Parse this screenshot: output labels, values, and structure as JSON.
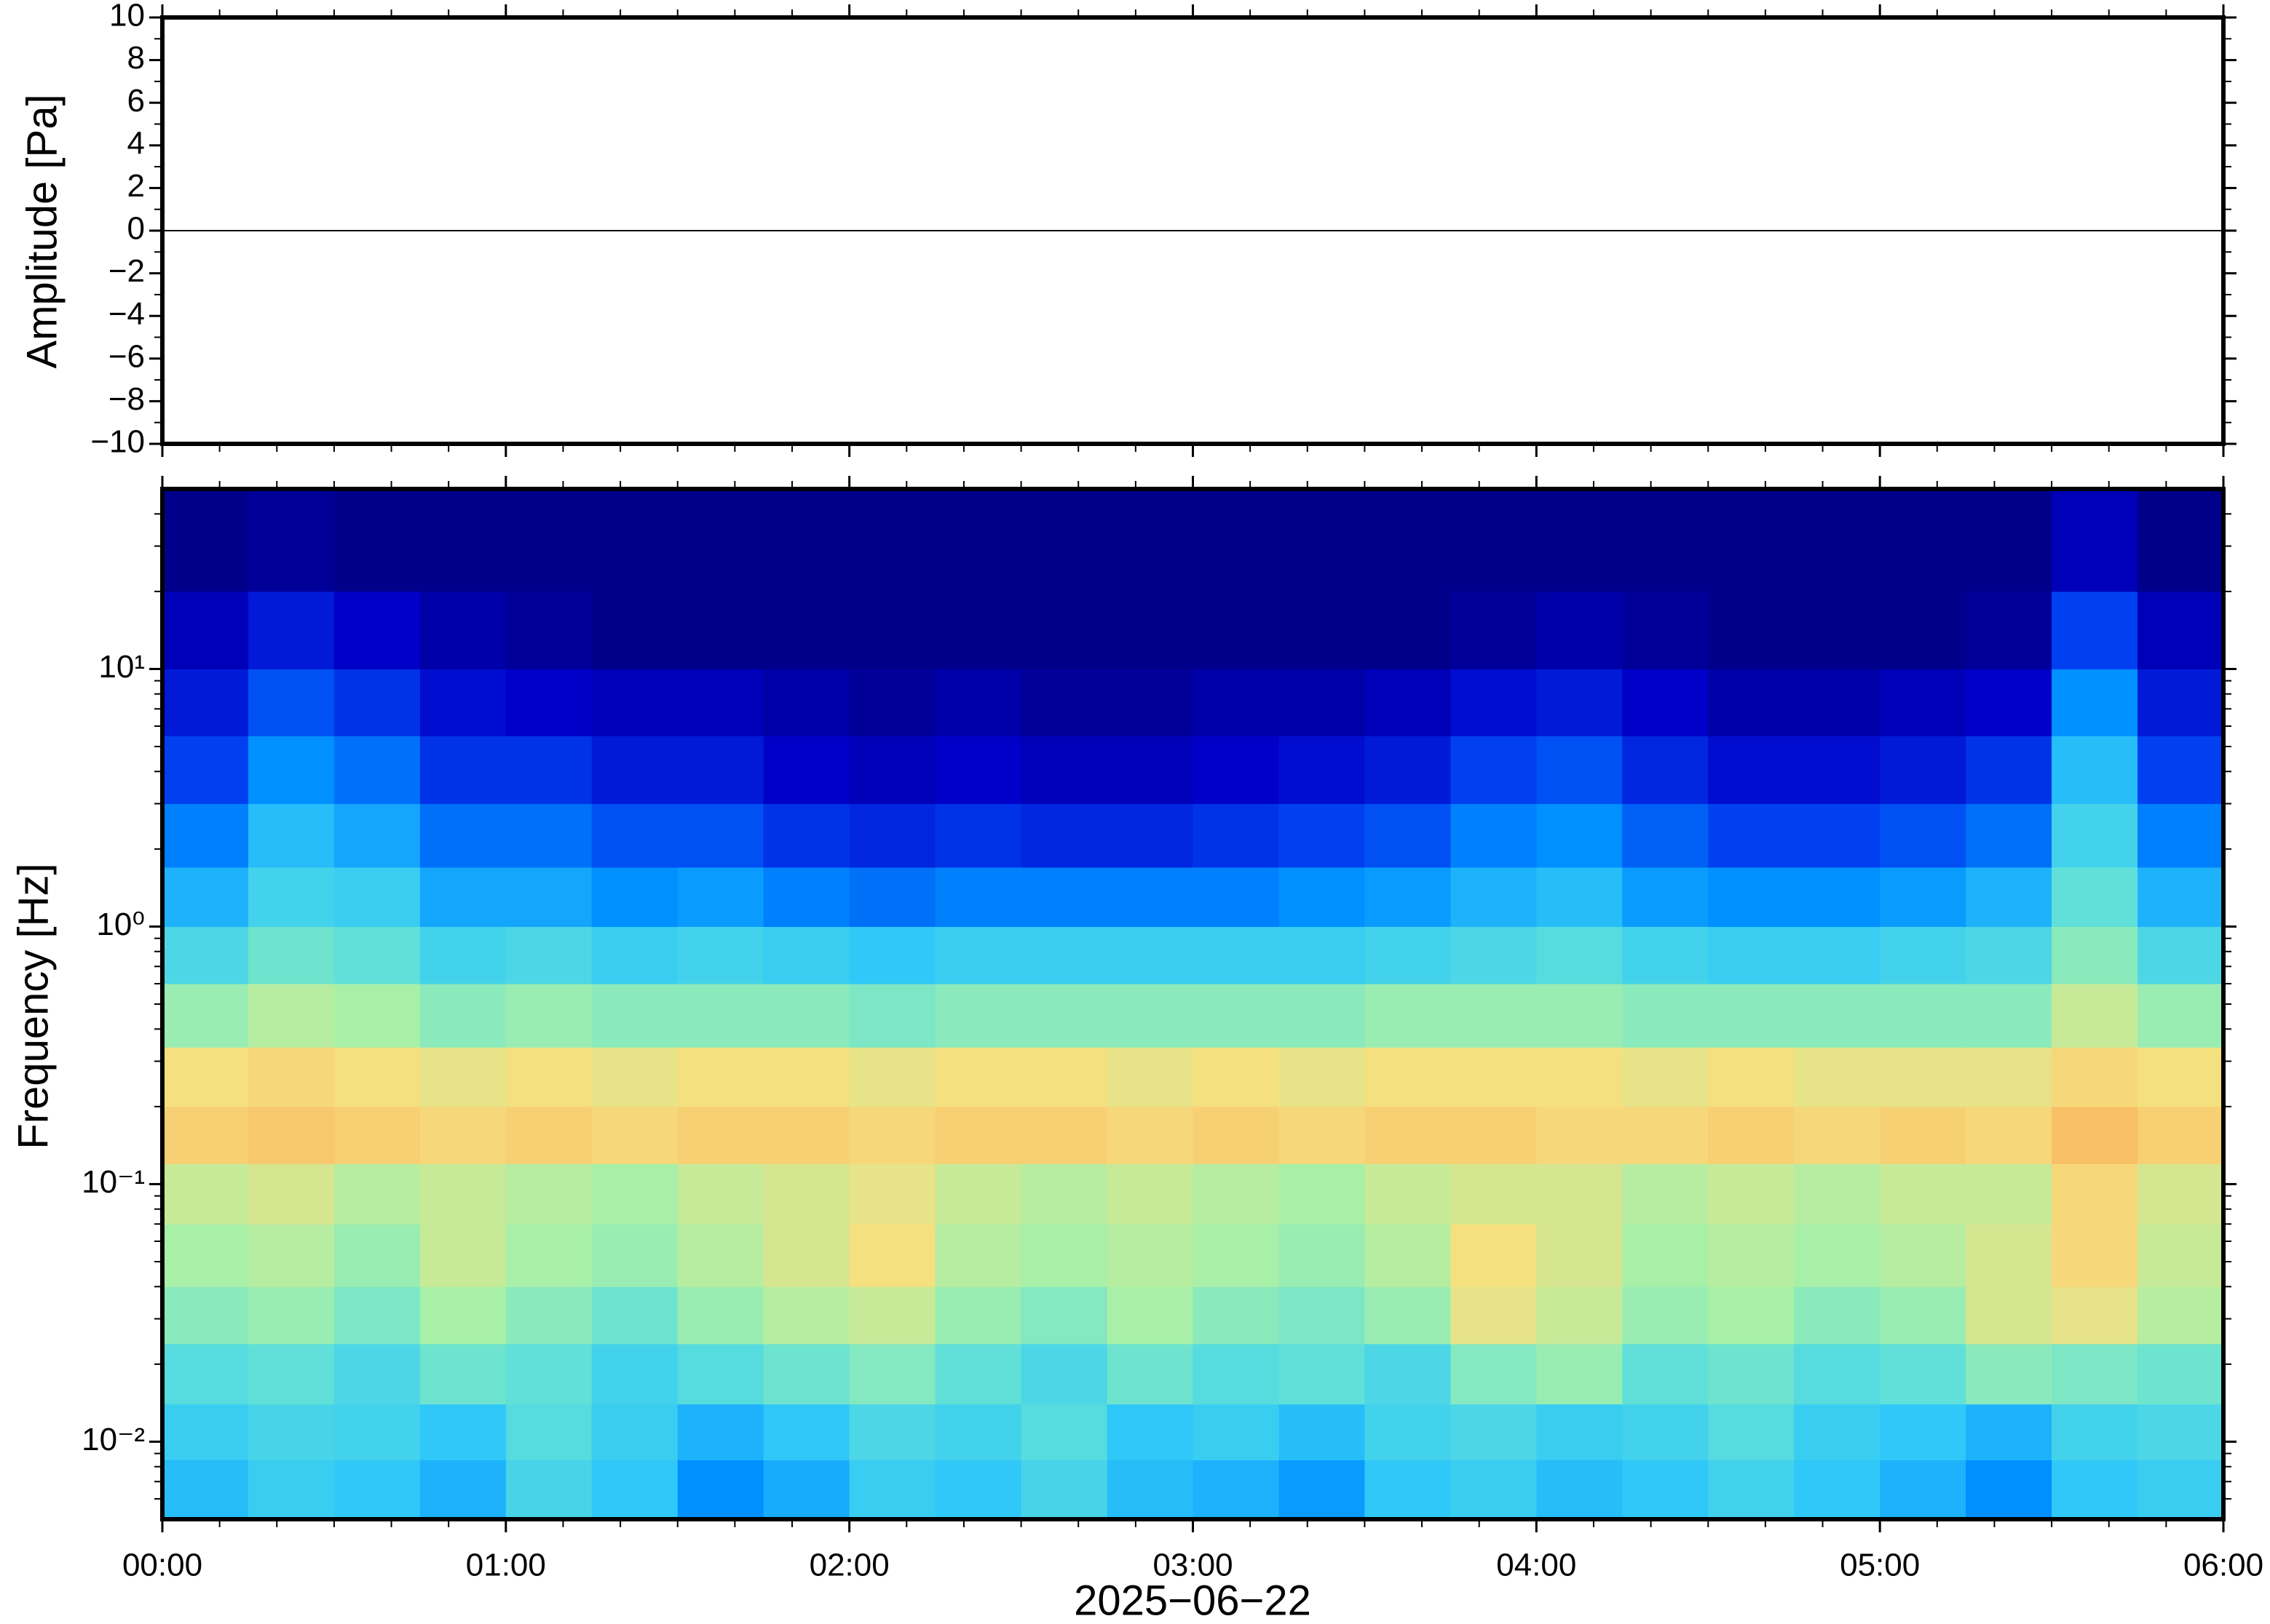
{
  "chart_data": [
    {
      "type": "line",
      "ylabel": "Amplitude [Pa]",
      "color": "#000000",
      "xlim": [
        0,
        6
      ],
      "xticks": [
        0,
        1,
        2,
        3,
        4,
        5,
        6
      ],
      "ylim": [
        -10,
        10
      ],
      "yticks": [
        {
          "value": -10,
          "label": "−10"
        },
        {
          "value": -8,
          "label": "−8"
        },
        {
          "value": -6,
          "label": "−6"
        },
        {
          "value": -4,
          "label": "−4"
        },
        {
          "value": -2,
          "label": "−2"
        },
        0,
        2,
        4,
        6,
        8,
        10
      ],
      "x": [
        0,
        0.25,
        0.5,
        0.75,
        1,
        1.25,
        1.5,
        1.75,
        2,
        2.25,
        2.5,
        2.75,
        3,
        3.25,
        3.5,
        3.75,
        4,
        4.25,
        4.5,
        4.75,
        5,
        5.25,
        5.5,
        5.75,
        6
      ],
      "values": [
        0,
        0,
        0,
        0,
        0,
        0,
        0,
        0,
        0,
        0,
        0,
        0,
        0,
        0,
        0,
        0,
        0,
        0,
        0,
        0,
        0,
        0,
        0,
        0,
        0
      ]
    },
    {
      "type": "heatmap",
      "ylabel": "Frequency [Hz]",
      "xlabel": "2025−06−22",
      "log_y": true,
      "xlim": [
        0,
        6
      ],
      "xticks": [
        {
          "value": 0,
          "label": "00:00"
        },
        {
          "value": 1,
          "label": "01:00"
        },
        {
          "value": 2,
          "label": "02:00"
        },
        {
          "value": 3,
          "label": "03:00"
        },
        {
          "value": 4,
          "label": "04:00"
        },
        {
          "value": 5,
          "label": "05:00"
        },
        {
          "value": 6,
          "label": "06:00"
        }
      ],
      "ylim": [
        0.005,
        50
      ],
      "yticks": [
        {
          "value": 0.01,
          "label": "10⁻²"
        },
        {
          "value": 0.1,
          "label": "10⁻¹"
        },
        {
          "value": 1,
          "label": "10⁰"
        },
        {
          "value": 10,
          "label": "10¹"
        }
      ],
      "clim": [
        0,
        1
      ],
      "colormap": [
        "#00007a",
        "#0000c8",
        "#0040f0",
        "#0090ff",
        "#30c8f8",
        "#60e0d8",
        "#a8f0a8",
        "#f5e080",
        "#f8b860",
        "#f07840",
        "#c02020"
      ],
      "xbins": [
        0,
        0.25,
        0.5,
        0.75,
        1,
        1.25,
        1.5,
        1.75,
        2,
        2.25,
        2.5,
        2.75,
        3,
        3.25,
        3.5,
        3.75,
        4,
        4.25,
        4.5,
        4.75,
        5,
        5.25,
        5.5,
        5.75,
        6
      ],
      "ybins": [
        0.005,
        0.0085,
        0.014,
        0.024,
        0.04,
        0.07,
        0.12,
        0.2,
        0.34,
        0.6,
        1,
        1.7,
        3,
        5.5,
        10,
        20,
        50
      ],
      "values": [
        [
          0.38,
          0.42,
          0.4,
          0.36,
          0.45,
          0.4,
          0.3,
          0.35,
          0.42,
          0.4,
          0.45,
          0.38,
          0.36,
          0.32,
          0.4,
          0.42,
          0.38,
          0.4,
          0.44,
          0.4,
          0.36,
          0.3,
          0.4,
          0.42
        ],
        [
          0.42,
          0.45,
          0.44,
          0.4,
          0.48,
          0.42,
          0.36,
          0.4,
          0.46,
          0.44,
          0.48,
          0.4,
          0.42,
          0.38,
          0.44,
          0.46,
          0.42,
          0.44,
          0.48,
          0.42,
          0.4,
          0.36,
          0.44,
          0.46
        ],
        [
          0.48,
          0.5,
          0.46,
          0.52,
          0.5,
          0.44,
          0.48,
          0.52,
          0.55,
          0.5,
          0.46,
          0.52,
          0.48,
          0.5,
          0.46,
          0.55,
          0.58,
          0.5,
          0.52,
          0.48,
          0.5,
          0.56,
          0.54,
          0.52
        ],
        [
          0.56,
          0.58,
          0.54,
          0.6,
          0.56,
          0.52,
          0.58,
          0.62,
          0.64,
          0.58,
          0.55,
          0.6,
          0.56,
          0.54,
          0.58,
          0.68,
          0.64,
          0.58,
          0.6,
          0.56,
          0.58,
          0.66,
          0.68,
          0.62
        ],
        [
          0.6,
          0.62,
          0.58,
          0.64,
          0.6,
          0.58,
          0.62,
          0.66,
          0.7,
          0.62,
          0.6,
          0.62,
          0.6,
          0.58,
          0.62,
          0.7,
          0.66,
          0.6,
          0.62,
          0.6,
          0.62,
          0.66,
          0.72,
          0.64
        ],
        [
          0.64,
          0.66,
          0.62,
          0.64,
          0.62,
          0.6,
          0.64,
          0.66,
          0.68,
          0.64,
          0.62,
          0.64,
          0.62,
          0.6,
          0.64,
          0.66,
          0.66,
          0.62,
          0.64,
          0.62,
          0.64,
          0.64,
          0.72,
          0.66
        ],
        [
          0.74,
          0.76,
          0.74,
          0.72,
          0.74,
          0.72,
          0.74,
          0.74,
          0.72,
          0.74,
          0.74,
          0.72,
          0.74,
          0.72,
          0.74,
          0.74,
          0.72,
          0.72,
          0.74,
          0.72,
          0.74,
          0.72,
          0.78,
          0.74
        ],
        [
          0.7,
          0.72,
          0.7,
          0.68,
          0.7,
          0.68,
          0.7,
          0.7,
          0.68,
          0.7,
          0.7,
          0.68,
          0.7,
          0.68,
          0.7,
          0.7,
          0.7,
          0.68,
          0.7,
          0.68,
          0.68,
          0.68,
          0.72,
          0.7
        ],
        [
          0.58,
          0.62,
          0.6,
          0.56,
          0.58,
          0.56,
          0.56,
          0.56,
          0.54,
          0.56,
          0.56,
          0.56,
          0.56,
          0.56,
          0.58,
          0.58,
          0.58,
          0.56,
          0.56,
          0.56,
          0.56,
          0.56,
          0.64,
          0.58
        ],
        [
          0.46,
          0.52,
          0.5,
          0.44,
          0.46,
          0.42,
          0.44,
          0.42,
          0.4,
          0.42,
          0.42,
          0.42,
          0.42,
          0.42,
          0.44,
          0.46,
          0.48,
          0.44,
          0.42,
          0.42,
          0.44,
          0.46,
          0.56,
          0.46
        ],
        [
          0.36,
          0.44,
          0.42,
          0.34,
          0.34,
          0.3,
          0.32,
          0.28,
          0.26,
          0.28,
          0.28,
          0.28,
          0.28,
          0.3,
          0.32,
          0.36,
          0.38,
          0.32,
          0.3,
          0.3,
          0.32,
          0.36,
          0.5,
          0.36
        ],
        [
          0.28,
          0.38,
          0.34,
          0.26,
          0.26,
          0.22,
          0.22,
          0.18,
          0.16,
          0.18,
          0.16,
          0.16,
          0.18,
          0.2,
          0.22,
          0.28,
          0.3,
          0.24,
          0.2,
          0.2,
          0.22,
          0.26,
          0.44,
          0.28
        ],
        [
          0.2,
          0.3,
          0.26,
          0.18,
          0.18,
          0.14,
          0.14,
          0.1,
          0.08,
          0.1,
          0.08,
          0.08,
          0.1,
          0.12,
          0.14,
          0.2,
          0.22,
          0.16,
          0.12,
          0.12,
          0.14,
          0.18,
          0.38,
          0.2
        ],
        [
          0.14,
          0.22,
          0.18,
          0.12,
          0.1,
          0.08,
          0.08,
          0.06,
          0.04,
          0.06,
          0.04,
          0.04,
          0.06,
          0.06,
          0.08,
          0.12,
          0.14,
          0.1,
          0.06,
          0.06,
          0.08,
          0.1,
          0.3,
          0.14
        ],
        [
          0.08,
          0.14,
          0.1,
          0.06,
          0.04,
          0.02,
          0.02,
          0.02,
          0.02,
          0.02,
          0.02,
          0.02,
          0.02,
          0.02,
          0.02,
          0.04,
          0.06,
          0.04,
          0.02,
          0.02,
          0.02,
          0.04,
          0.2,
          0.08
        ],
        [
          0.02,
          0.04,
          0.02,
          0.02,
          0.02,
          0.02,
          0.02,
          0.02,
          0.02,
          0.02,
          0.02,
          0.02,
          0.02,
          0.02,
          0.02,
          0.02,
          0.02,
          0.02,
          0.02,
          0.02,
          0.02,
          0.02,
          0.08,
          0.02
        ]
      ]
    }
  ]
}
